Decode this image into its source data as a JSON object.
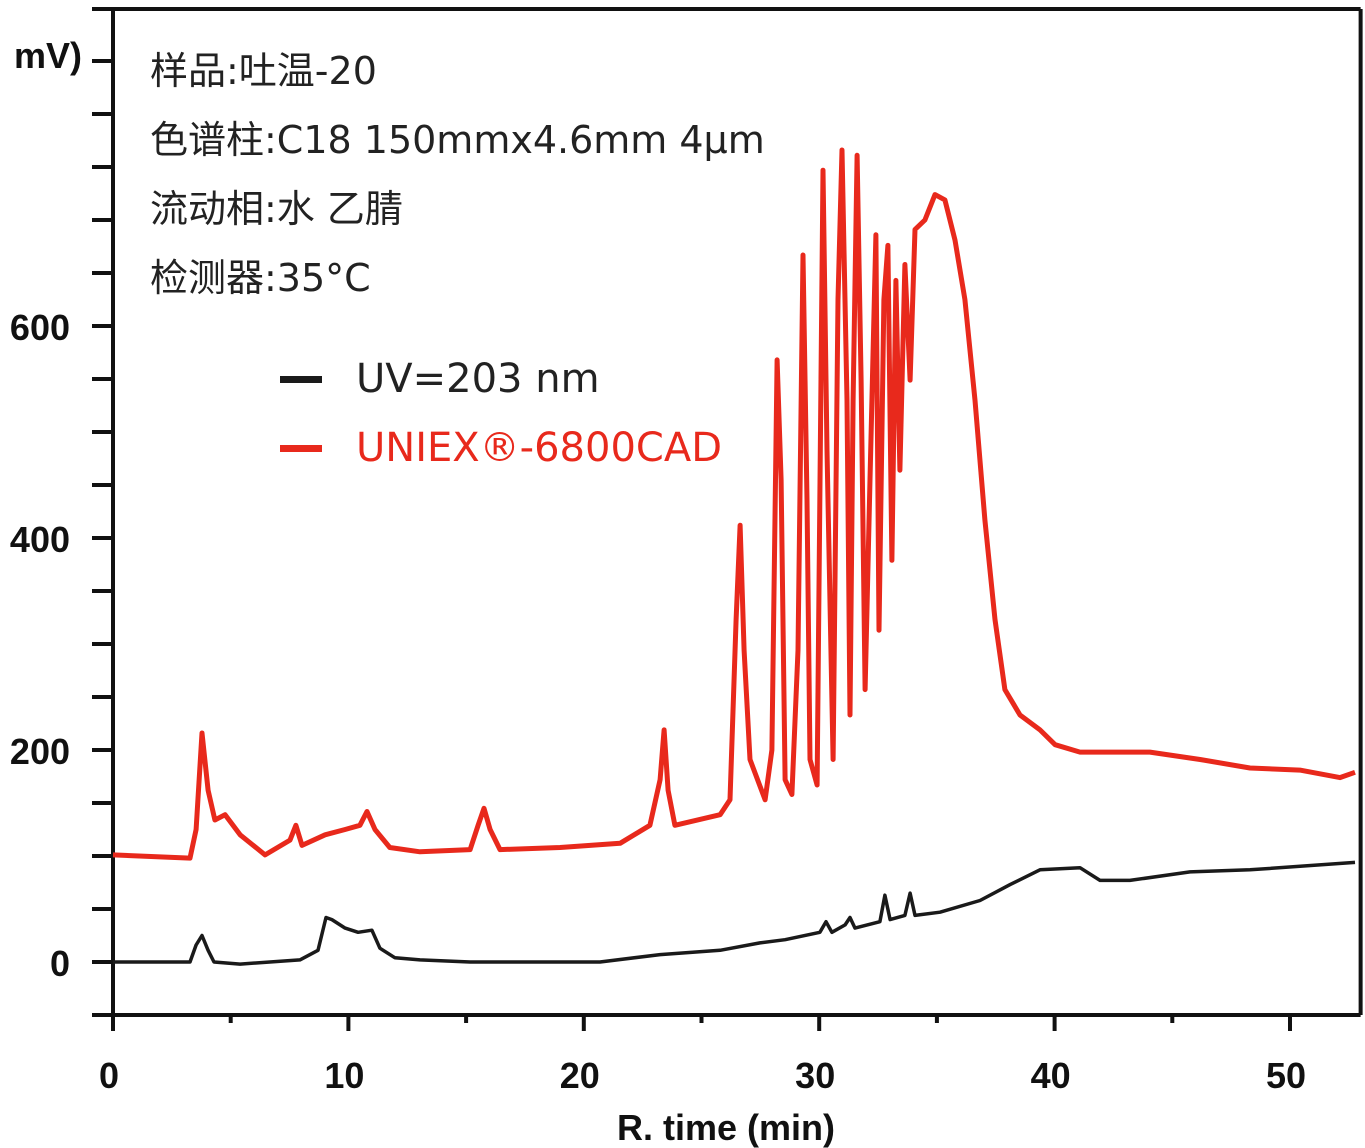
{
  "chart_data": {
    "type": "line",
    "title": "",
    "xlabel": "R. time (min)",
    "ylabel": "mV)",
    "xlim": [
      0,
      53
    ],
    "ylim": [
      -50,
      899
    ],
    "x_ticks": [
      0,
      10,
      20,
      30,
      40,
      50
    ],
    "y_ticks": [
      0,
      200,
      400,
      600
    ],
    "y_minor_step": 50,
    "grid": false,
    "legend_placement": "top-left",
    "annotations": [
      "样品:吐温-20",
      "色谱柱:C18 150mmx4.6mm 4µm",
      "流动相:水 乙腈",
      "检测器:35°C"
    ],
    "series": [
      {
        "name": "UV=203 nm",
        "color": "#1a1a1a",
        "points": [
          [
            0,
            0
          ],
          [
            3.27,
            0
          ],
          [
            3.53,
            16
          ],
          [
            3.78,
            25
          ],
          [
            4.04,
            11
          ],
          [
            4.29,
            0
          ],
          [
            5.4,
            -2
          ],
          [
            7.94,
            2
          ],
          [
            8.71,
            11
          ],
          [
            9.05,
            42
          ],
          [
            9.3,
            40
          ],
          [
            9.86,
            32
          ],
          [
            10.41,
            28
          ],
          [
            11.0,
            30
          ],
          [
            11.34,
            13
          ],
          [
            11.98,
            4
          ],
          [
            13.04,
            2
          ],
          [
            15.17,
            0
          ],
          [
            20.69,
            0
          ],
          [
            23.24,
            7
          ],
          [
            25.79,
            11
          ],
          [
            27.48,
            18
          ],
          [
            28.55,
            21
          ],
          [
            30.03,
            28
          ],
          [
            30.29,
            38
          ],
          [
            30.54,
            28
          ],
          [
            31.1,
            35
          ],
          [
            31.31,
            42
          ],
          [
            31.52,
            32
          ],
          [
            32.58,
            38
          ],
          [
            32.79,
            63
          ],
          [
            33.01,
            40
          ],
          [
            33.64,
            44
          ],
          [
            33.86,
            65
          ],
          [
            34.07,
            44
          ],
          [
            35.13,
            47
          ],
          [
            36.83,
            58
          ],
          [
            38.11,
            73
          ],
          [
            39.38,
            87
          ],
          [
            41.08,
            89
          ],
          [
            41.93,
            77
          ],
          [
            43.2,
            77
          ],
          [
            45.75,
            85
          ],
          [
            48.3,
            87
          ],
          [
            52.76,
            94
          ]
        ]
      },
      {
        "name": "UNIEX®-6800CAD",
        "color": "#e8291c",
        "points": [
          [
            0,
            101
          ],
          [
            3.27,
            98
          ],
          [
            3.53,
            125
          ],
          [
            3.78,
            216
          ],
          [
            4.04,
            162
          ],
          [
            4.33,
            134
          ],
          [
            4.76,
            139
          ],
          [
            5.4,
            120
          ],
          [
            6.46,
            101
          ],
          [
            7.52,
            115
          ],
          [
            7.77,
            129
          ],
          [
            8.03,
            110
          ],
          [
            9.01,
            120
          ],
          [
            9.86,
            125
          ],
          [
            10.49,
            129
          ],
          [
            10.79,
            142
          ],
          [
            11.13,
            125
          ],
          [
            11.76,
            108
          ],
          [
            13.04,
            104
          ],
          [
            15.17,
            106
          ],
          [
            15.51,
            129
          ],
          [
            15.76,
            145
          ],
          [
            16.02,
            125
          ],
          [
            16.44,
            106
          ],
          [
            18.99,
            108
          ],
          [
            21.54,
            112
          ],
          [
            22.81,
            129
          ],
          [
            23.24,
            172
          ],
          [
            23.41,
            219
          ],
          [
            23.58,
            162
          ],
          [
            23.87,
            129
          ],
          [
            25.79,
            139
          ],
          [
            26.21,
            153
          ],
          [
            26.47,
            323
          ],
          [
            26.64,
            412
          ],
          [
            26.81,
            294
          ],
          [
            27.06,
            191
          ],
          [
            27.7,
            153
          ],
          [
            27.99,
            200
          ],
          [
            28.21,
            568
          ],
          [
            28.38,
            455
          ],
          [
            28.55,
            172
          ],
          [
            28.84,
            158
          ],
          [
            29.1,
            294
          ],
          [
            29.31,
            667
          ],
          [
            29.48,
            436
          ],
          [
            29.61,
            191
          ],
          [
            29.91,
            167
          ],
          [
            30.16,
            747
          ],
          [
            30.33,
            483
          ],
          [
            30.59,
            191
          ],
          [
            30.8,
            625
          ],
          [
            30.97,
            766
          ],
          [
            31.18,
            530
          ],
          [
            31.31,
            233
          ],
          [
            31.44,
            530
          ],
          [
            31.61,
            761
          ],
          [
            31.78,
            549
          ],
          [
            31.95,
            257
          ],
          [
            32.16,
            455
          ],
          [
            32.41,
            686
          ],
          [
            32.54,
            313
          ],
          [
            32.75,
            625
          ],
          [
            32.92,
            676
          ],
          [
            33.09,
            379
          ],
          [
            33.26,
            643
          ],
          [
            33.43,
            464
          ],
          [
            33.64,
            658
          ],
          [
            33.86,
            549
          ],
          [
            34.07,
            691
          ],
          [
            34.49,
            700
          ],
          [
            34.92,
            724
          ],
          [
            35.34,
            719
          ],
          [
            35.77,
            681
          ],
          [
            36.19,
            625
          ],
          [
            36.62,
            530
          ],
          [
            37.04,
            417
          ],
          [
            37.47,
            323
          ],
          [
            37.89,
            257
          ],
          [
            38.53,
            233
          ],
          [
            39.38,
            219
          ],
          [
            40.02,
            205
          ],
          [
            41.08,
            198
          ],
          [
            44.05,
            198
          ],
          [
            46.18,
            191
          ],
          [
            48.3,
            183
          ],
          [
            50.42,
            181
          ],
          [
            52.12,
            174
          ],
          [
            52.76,
            179
          ]
        ]
      }
    ]
  }
}
